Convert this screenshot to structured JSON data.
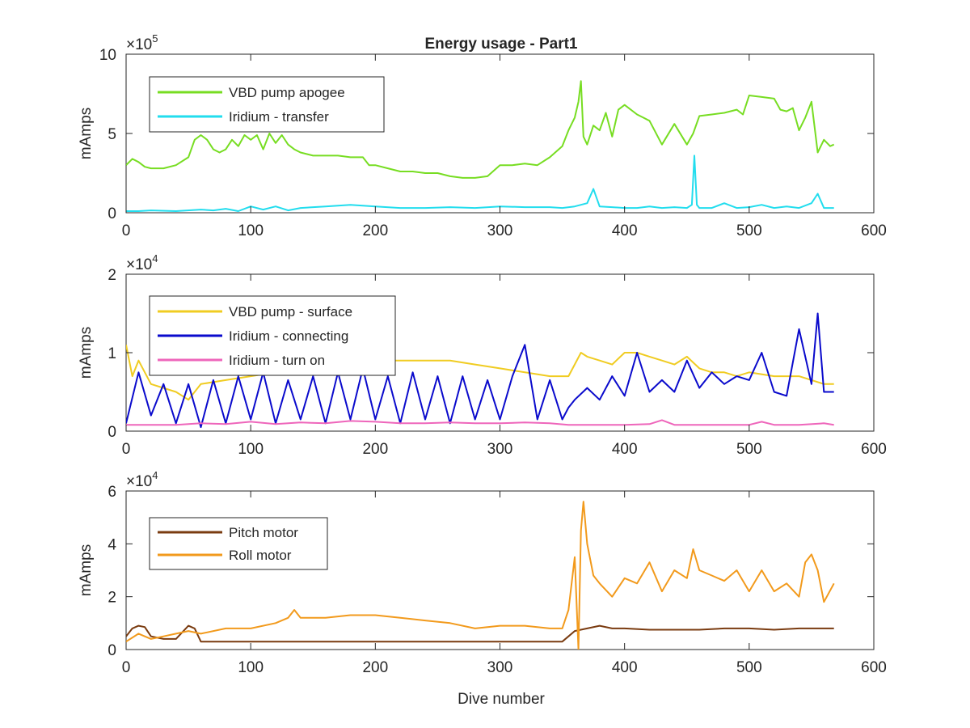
{
  "figure": {
    "title": "Energy usage - Part1",
    "xlabel": "Dive number"
  },
  "chart_data": [
    {
      "type": "line",
      "title": "Energy usage - Part1",
      "xlabel": "",
      "ylabel": "mAmps",
      "xlim": [
        0,
        600
      ],
      "ylim": [
        0,
        1000000
      ],
      "xticks": [
        0,
        100,
        200,
        300,
        400,
        500,
        600
      ],
      "yticks": [
        0,
        500000,
        1000000
      ],
      "ytick_labels": [
        "0",
        "5",
        "10"
      ],
      "exponent_base": "×10",
      "exponent_power": "5",
      "grid": false,
      "legend": "top-left",
      "series": [
        {
          "name": "VBD pump apogee",
          "color": "#77dd22",
          "x": [
            0,
            5,
            10,
            15,
            20,
            30,
            40,
            50,
            55,
            60,
            65,
            70,
            75,
            80,
            85,
            90,
            95,
            100,
            105,
            110,
            115,
            120,
            125,
            130,
            135,
            140,
            150,
            160,
            170,
            180,
            190,
            195,
            200,
            210,
            220,
            230,
            240,
            250,
            260,
            270,
            280,
            290,
            300,
            310,
            320,
            330,
            340,
            350,
            355,
            360,
            363,
            365,
            367,
            370,
            375,
            380,
            385,
            390,
            395,
            400,
            410,
            415,
            420,
            430,
            440,
            450,
            455,
            460,
            470,
            480,
            490,
            495,
            500,
            510,
            520,
            525,
            530,
            535,
            540,
            545,
            550,
            555,
            560,
            565,
            568
          ],
          "y": [
            300000,
            340000,
            320000,
            290000,
            280000,
            280000,
            300000,
            350000,
            460000,
            490000,
            460000,
            400000,
            380000,
            400000,
            460000,
            420000,
            490000,
            460000,
            490000,
            400000,
            500000,
            440000,
            490000,
            430000,
            400000,
            380000,
            360000,
            360000,
            360000,
            350000,
            350000,
            300000,
            300000,
            280000,
            260000,
            260000,
            250000,
            250000,
            230000,
            220000,
            220000,
            230000,
            300000,
            300000,
            310000,
            300000,
            350000,
            420000,
            520000,
            600000,
            700000,
            830000,
            480000,
            430000,
            550000,
            520000,
            630000,
            480000,
            650000,
            680000,
            620000,
            600000,
            580000,
            430000,
            560000,
            430000,
            500000,
            610000,
            620000,
            630000,
            650000,
            620000,
            740000,
            730000,
            720000,
            650000,
            640000,
            660000,
            520000,
            600000,
            700000,
            380000,
            460000,
            420000,
            430000
          ]
        },
        {
          "name": "Iridium - transfer",
          "color": "#22ddee",
          "x": [
            0,
            10,
            20,
            40,
            60,
            70,
            80,
            90,
            100,
            110,
            120,
            130,
            140,
            160,
            180,
            200,
            220,
            240,
            260,
            280,
            300,
            320,
            340,
            350,
            360,
            365,
            370,
            375,
            380,
            390,
            400,
            410,
            420,
            430,
            440,
            450,
            454,
            456,
            458,
            460,
            470,
            480,
            490,
            500,
            510,
            520,
            530,
            540,
            550,
            555,
            560,
            568
          ],
          "y": [
            10000,
            10000,
            15000,
            10000,
            20000,
            15000,
            25000,
            10000,
            40000,
            20000,
            40000,
            15000,
            30000,
            40000,
            50000,
            40000,
            30000,
            30000,
            35000,
            30000,
            40000,
            35000,
            35000,
            30000,
            40000,
            50000,
            60000,
            150000,
            40000,
            35000,
            30000,
            30000,
            40000,
            30000,
            35000,
            30000,
            50000,
            360000,
            50000,
            30000,
            30000,
            60000,
            30000,
            35000,
            50000,
            30000,
            40000,
            30000,
            60000,
            120000,
            30000,
            30000
          ]
        }
      ]
    },
    {
      "type": "line",
      "title": "",
      "xlabel": "",
      "ylabel": "mAmps",
      "xlim": [
        0,
        600
      ],
      "ylim": [
        0,
        20000
      ],
      "xticks": [
        0,
        100,
        200,
        300,
        400,
        500,
        600
      ],
      "yticks": [
        0,
        10000,
        20000
      ],
      "ytick_labels": [
        "0",
        "1",
        "2"
      ],
      "exponent_base": "×10",
      "exponent_power": "4",
      "grid": false,
      "legend": "top-left",
      "series": [
        {
          "name": "VBD pump - surface",
          "color": "#f0cc22",
          "x": [
            0,
            5,
            10,
            20,
            40,
            50,
            60,
            80,
            100,
            120,
            140,
            160,
            180,
            200,
            220,
            240,
            260,
            280,
            300,
            320,
            340,
            355,
            365,
            370,
            380,
            390,
            400,
            410,
            420,
            430,
            440,
            450,
            460,
            470,
            480,
            490,
            500,
            520,
            540,
            560,
            568
          ],
          "y": [
            11000,
            7000,
            9000,
            6000,
            5000,
            4000,
            6000,
            6500,
            7000,
            7500,
            8000,
            8500,
            9000,
            9000,
            9000,
            9000,
            9000,
            8500,
            8000,
            7500,
            7000,
            7000,
            10000,
            9500,
            9000,
            8500,
            10000,
            10000,
            9500,
            9000,
            8500,
            9500,
            8000,
            7500,
            7500,
            7000,
            7500,
            7000,
            7000,
            6000,
            6000
          ]
        },
        {
          "name": "Iridium - connecting",
          "color": "#0a0acc",
          "x": [
            0,
            10,
            20,
            30,
            40,
            50,
            60,
            70,
            80,
            90,
            100,
            110,
            120,
            130,
            140,
            150,
            160,
            170,
            180,
            190,
            200,
            210,
            220,
            230,
            240,
            250,
            260,
            270,
            280,
            290,
            300,
            310,
            320,
            330,
            340,
            350,
            355,
            360,
            370,
            380,
            390,
            400,
            410,
            420,
            430,
            440,
            450,
            460,
            470,
            480,
            490,
            500,
            510,
            520,
            530,
            540,
            550,
            555,
            560,
            568
          ],
          "y": [
            1000,
            7500,
            2000,
            6000,
            1000,
            6000,
            500,
            6500,
            1000,
            7000,
            1500,
            7500,
            1000,
            6500,
            1500,
            7000,
            1000,
            7500,
            1500,
            8000,
            1500,
            7000,
            1000,
            7500,
            1500,
            7000,
            1000,
            7000,
            1500,
            6500,
            1500,
            7000,
            11000,
            1500,
            6500,
            1500,
            3000,
            4000,
            5500,
            4000,
            7000,
            4500,
            10000,
            5000,
            6500,
            5000,
            9000,
            5500,
            7500,
            6000,
            7000,
            6500,
            10000,
            5000,
            4500,
            13000,
            6000,
            15000,
            5000,
            5000
          ]
        },
        {
          "name": "Iridium - turn on",
          "color": "#ee66bb",
          "x": [
            0,
            20,
            40,
            60,
            80,
            100,
            120,
            140,
            160,
            180,
            200,
            220,
            240,
            260,
            280,
            300,
            320,
            340,
            355,
            365,
            380,
            400,
            420,
            430,
            440,
            460,
            480,
            500,
            510,
            520,
            540,
            560,
            568
          ],
          "y": [
            800,
            800,
            800,
            1000,
            900,
            1200,
            900,
            1100,
            1000,
            1300,
            1200,
            1000,
            1000,
            1100,
            1000,
            1000,
            1100,
            1000,
            800,
            800,
            800,
            800,
            900,
            1400,
            800,
            800,
            800,
            800,
            1200,
            800,
            800,
            1000,
            800
          ]
        }
      ]
    },
    {
      "type": "line",
      "title": "",
      "xlabel": "Dive number",
      "ylabel": "mAmps",
      "xlim": [
        0,
        600
      ],
      "ylim": [
        0,
        60000
      ],
      "xticks": [
        0,
        100,
        200,
        300,
        400,
        500,
        600
      ],
      "yticks": [
        0,
        20000,
        40000,
        60000
      ],
      "ytick_labels": [
        "0",
        "2",
        "4",
        "6"
      ],
      "exponent_base": "×10",
      "exponent_power": "4",
      "grid": false,
      "legend": "top-left",
      "series": [
        {
          "name": "Pitch motor",
          "color": "#7a3b10",
          "x": [
            0,
            5,
            10,
            15,
            20,
            30,
            40,
            50,
            55,
            60,
            70,
            80,
            100,
            120,
            140,
            160,
            180,
            200,
            220,
            240,
            260,
            280,
            300,
            320,
            340,
            350,
            355,
            360,
            370,
            380,
            390,
            400,
            420,
            440,
            460,
            480,
            500,
            520,
            540,
            560,
            568
          ],
          "y": [
            5000,
            8000,
            9000,
            8500,
            5000,
            4000,
            4000,
            9000,
            8000,
            3000,
            3000,
            3000,
            3000,
            3000,
            3000,
            3000,
            3000,
            3000,
            3000,
            3000,
            3000,
            3000,
            3000,
            3000,
            3000,
            3000,
            5000,
            7000,
            8000,
            9000,
            8000,
            8000,
            7500,
            7500,
            7500,
            8000,
            8000,
            7500,
            8000,
            8000,
            8000
          ]
        },
        {
          "name": "Roll motor",
          "color": "#f29a1c",
          "x": [
            0,
            10,
            20,
            30,
            40,
            50,
            60,
            80,
            100,
            120,
            130,
            135,
            140,
            160,
            180,
            200,
            220,
            240,
            260,
            280,
            300,
            320,
            340,
            350,
            355,
            360,
            363,
            365,
            367,
            370,
            375,
            380,
            390,
            400,
            410,
            420,
            430,
            440,
            450,
            455,
            460,
            470,
            480,
            490,
            500,
            510,
            520,
            530,
            540,
            545,
            550,
            555,
            560,
            568
          ],
          "y": [
            3000,
            6000,
            4000,
            5000,
            6000,
            7000,
            6000,
            8000,
            8000,
            10000,
            12000,
            15000,
            12000,
            12000,
            13000,
            13000,
            12000,
            11000,
            10000,
            8000,
            9000,
            9000,
            8000,
            8000,
            15000,
            35000,
            0,
            45000,
            56000,
            40000,
            28000,
            25000,
            20000,
            27000,
            25000,
            33000,
            22000,
            30000,
            27000,
            38000,
            30000,
            28000,
            26000,
            30000,
            22000,
            30000,
            22000,
            25000,
            20000,
            33000,
            36000,
            30000,
            18000,
            25000
          ]
        }
      ]
    }
  ]
}
